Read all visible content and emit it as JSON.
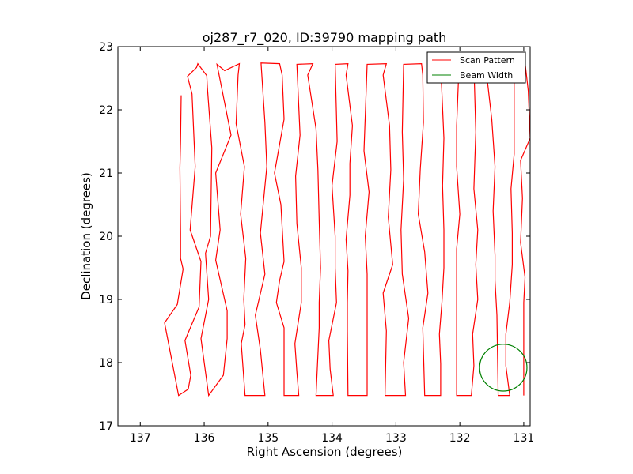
{
  "chart_data": {
    "type": "line",
    "title": "oj287_r7_020, ID:39790 mapping path",
    "xlabel": "Right Ascension (degrees)",
    "ylabel": "Declination (degrees)",
    "xlim": [
      137.35,
      130.9
    ],
    "ylim": [
      17,
      23
    ],
    "xticks": [
      137,
      136,
      135,
      134,
      133,
      132,
      131
    ],
    "yticks": [
      17,
      18,
      19,
      20,
      21,
      22,
      23
    ],
    "grid": false,
    "legend_position": "top-right",
    "series": [
      {
        "name": "Scan Pattern",
        "color": "#ff0000",
        "points": [
          [
            136.36,
            22.23
          ],
          [
            136.37,
            21.5
          ],
          [
            136.38,
            21.08
          ],
          [
            136.37,
            20.05
          ],
          [
            136.37,
            19.65
          ],
          [
            136.33,
            19.48
          ],
          [
            136.42,
            18.92
          ],
          [
            136.62,
            18.63
          ],
          [
            136.4,
            17.48
          ],
          [
            136.25,
            17.58
          ],
          [
            136.21,
            17.8
          ],
          [
            136.3,
            18.35
          ],
          [
            136.08,
            18.88
          ],
          [
            136.05,
            19.6
          ],
          [
            136.22,
            20.1
          ],
          [
            136.14,
            21.1
          ],
          [
            136.19,
            22.25
          ],
          [
            136.26,
            22.53
          ],
          [
            136.12,
            22.67
          ],
          [
            136.1,
            22.73
          ],
          [
            135.96,
            22.54
          ],
          [
            135.95,
            22.35
          ],
          [
            135.88,
            21.4
          ],
          [
            135.9,
            20.0
          ],
          [
            135.98,
            19.73
          ],
          [
            135.93,
            19.0
          ],
          [
            136.05,
            18.38
          ],
          [
            135.93,
            17.48
          ],
          [
            135.7,
            17.8
          ],
          [
            135.64,
            18.38
          ],
          [
            135.64,
            18.82
          ],
          [
            135.82,
            19.62
          ],
          [
            135.75,
            20.1
          ],
          [
            135.82,
            21.0
          ],
          [
            135.58,
            21.6
          ],
          [
            135.8,
            22.72
          ],
          [
            135.68,
            22.62
          ],
          [
            135.45,
            22.73
          ],
          [
            135.47,
            22.55
          ],
          [
            135.5,
            21.78
          ],
          [
            135.37,
            21.1
          ],
          [
            135.43,
            20.35
          ],
          [
            135.35,
            19.65
          ],
          [
            135.38,
            19.0
          ],
          [
            135.36,
            18.6
          ],
          [
            135.42,
            18.3
          ],
          [
            135.36,
            17.48
          ],
          [
            135.05,
            17.48
          ],
          [
            135.12,
            18.2
          ],
          [
            135.2,
            18.75
          ],
          [
            135.05,
            19.4
          ],
          [
            135.12,
            20.05
          ],
          [
            135.02,
            21.1
          ],
          [
            135.05,
            21.8
          ],
          [
            135.11,
            22.74
          ],
          [
            134.82,
            22.73
          ],
          [
            134.78,
            22.55
          ],
          [
            134.75,
            21.85
          ],
          [
            134.9,
            21.0
          ],
          [
            134.8,
            20.5
          ],
          [
            134.75,
            19.6
          ],
          [
            134.82,
            19.3
          ],
          [
            134.87,
            18.95
          ],
          [
            134.75,
            18.55
          ],
          [
            134.75,
            17.48
          ],
          [
            134.52,
            17.48
          ],
          [
            134.55,
            17.85
          ],
          [
            134.58,
            18.3
          ],
          [
            134.48,
            18.95
          ],
          [
            134.48,
            19.5
          ],
          [
            134.55,
            20.2
          ],
          [
            134.57,
            20.95
          ],
          [
            134.5,
            21.6
          ],
          [
            134.55,
            22.72
          ],
          [
            134.3,
            22.73
          ],
          [
            134.38,
            22.55
          ],
          [
            134.25,
            21.7
          ],
          [
            134.22,
            21.05
          ],
          [
            134.2,
            20.25
          ],
          [
            134.18,
            19.5
          ],
          [
            134.2,
            18.95
          ],
          [
            134.2,
            18.55
          ],
          [
            134.25,
            17.48
          ],
          [
            133.98,
            17.48
          ],
          [
            134.03,
            17.9
          ],
          [
            134.05,
            18.35
          ],
          [
            133.93,
            18.95
          ],
          [
            133.95,
            19.5
          ],
          [
            133.95,
            20.0
          ],
          [
            134.0,
            20.8
          ],
          [
            133.92,
            21.5
          ],
          [
            133.95,
            22.72
          ],
          [
            133.75,
            22.73
          ],
          [
            133.78,
            22.55
          ],
          [
            133.68,
            21.75
          ],
          [
            133.72,
            21.15
          ],
          [
            133.72,
            20.65
          ],
          [
            133.78,
            19.95
          ],
          [
            133.75,
            19.45
          ],
          [
            133.76,
            18.95
          ],
          [
            133.76,
            18.5
          ],
          [
            133.75,
            17.48
          ],
          [
            133.45,
            17.48
          ],
          [
            133.45,
            17.8
          ],
          [
            133.45,
            18.4
          ],
          [
            133.45,
            18.9
          ],
          [
            133.45,
            19.4
          ],
          [
            133.48,
            20.0
          ],
          [
            133.42,
            20.7
          ],
          [
            133.5,
            21.35
          ],
          [
            133.45,
            22.72
          ],
          [
            133.15,
            22.73
          ],
          [
            133.2,
            22.55
          ],
          [
            133.1,
            21.75
          ],
          [
            133.08,
            21.05
          ],
          [
            133.12,
            20.3
          ],
          [
            133.05,
            19.55
          ],
          [
            133.2,
            19.1
          ],
          [
            133.15,
            18.5
          ],
          [
            133.17,
            17.48
          ],
          [
            132.85,
            17.48
          ],
          [
            132.88,
            18.0
          ],
          [
            132.8,
            18.7
          ],
          [
            132.9,
            19.4
          ],
          [
            132.92,
            20.1
          ],
          [
            132.88,
            20.9
          ],
          [
            132.9,
            21.65
          ],
          [
            132.88,
            22.72
          ],
          [
            132.6,
            22.73
          ],
          [
            132.58,
            22.55
          ],
          [
            132.57,
            21.8
          ],
          [
            132.62,
            21.05
          ],
          [
            132.65,
            20.35
          ],
          [
            132.55,
            19.75
          ],
          [
            132.5,
            19.1
          ],
          [
            132.58,
            18.55
          ],
          [
            132.55,
            17.48
          ],
          [
            132.3,
            17.48
          ],
          [
            132.3,
            17.98
          ],
          [
            132.32,
            18.45
          ],
          [
            132.28,
            18.95
          ],
          [
            132.25,
            19.5
          ],
          [
            132.25,
            20.1
          ],
          [
            132.27,
            20.8
          ],
          [
            132.25,
            21.55
          ],
          [
            132.3,
            22.72
          ],
          [
            132.1,
            22.73
          ],
          [
            132.02,
            22.5
          ],
          [
            132.05,
            21.75
          ],
          [
            132.05,
            21.1
          ],
          [
            132.0,
            20.35
          ],
          [
            132.05,
            19.8
          ],
          [
            132.05,
            19.2
          ],
          [
            132.05,
            18.7
          ],
          [
            132.05,
            17.48
          ],
          [
            131.82,
            17.48
          ],
          [
            131.78,
            17.95
          ],
          [
            131.8,
            18.45
          ],
          [
            131.72,
            19.0
          ],
          [
            131.75,
            19.55
          ],
          [
            131.72,
            20.1
          ],
          [
            131.78,
            20.75
          ],
          [
            131.75,
            21.65
          ],
          [
            131.78,
            22.72
          ],
          [
            131.55,
            22.73
          ],
          [
            131.58,
            22.55
          ],
          [
            131.5,
            21.85
          ],
          [
            131.45,
            21.1
          ],
          [
            131.48,
            20.4
          ],
          [
            131.45,
            19.7
          ],
          [
            131.45,
            19.3
          ],
          [
            131.42,
            18.75
          ],
          [
            131.4,
            17.48
          ],
          [
            131.22,
            17.48
          ],
          [
            131.28,
            17.95
          ],
          [
            131.28,
            18.45
          ],
          [
            131.22,
            18.95
          ],
          [
            131.18,
            19.55
          ],
          [
            131.18,
            20.05
          ],
          [
            131.2,
            20.75
          ],
          [
            131.15,
            21.3
          ],
          [
            131.15,
            22.72
          ],
          [
            130.98,
            22.75
          ],
          [
            130.93,
            22.3
          ],
          [
            130.9,
            21.55
          ],
          [
            131.05,
            21.2
          ],
          [
            131.02,
            20.6
          ],
          [
            131.05,
            19.9
          ],
          [
            130.98,
            19.35
          ],
          [
            131.0,
            18.95
          ],
          [
            131.0,
            17.48
          ]
        ]
      },
      {
        "name": "Beam Width",
        "color": "#008000",
        "shape": "circle",
        "center": [
          131.32,
          17.92
        ],
        "radius_deg": 0.37
      }
    ]
  }
}
